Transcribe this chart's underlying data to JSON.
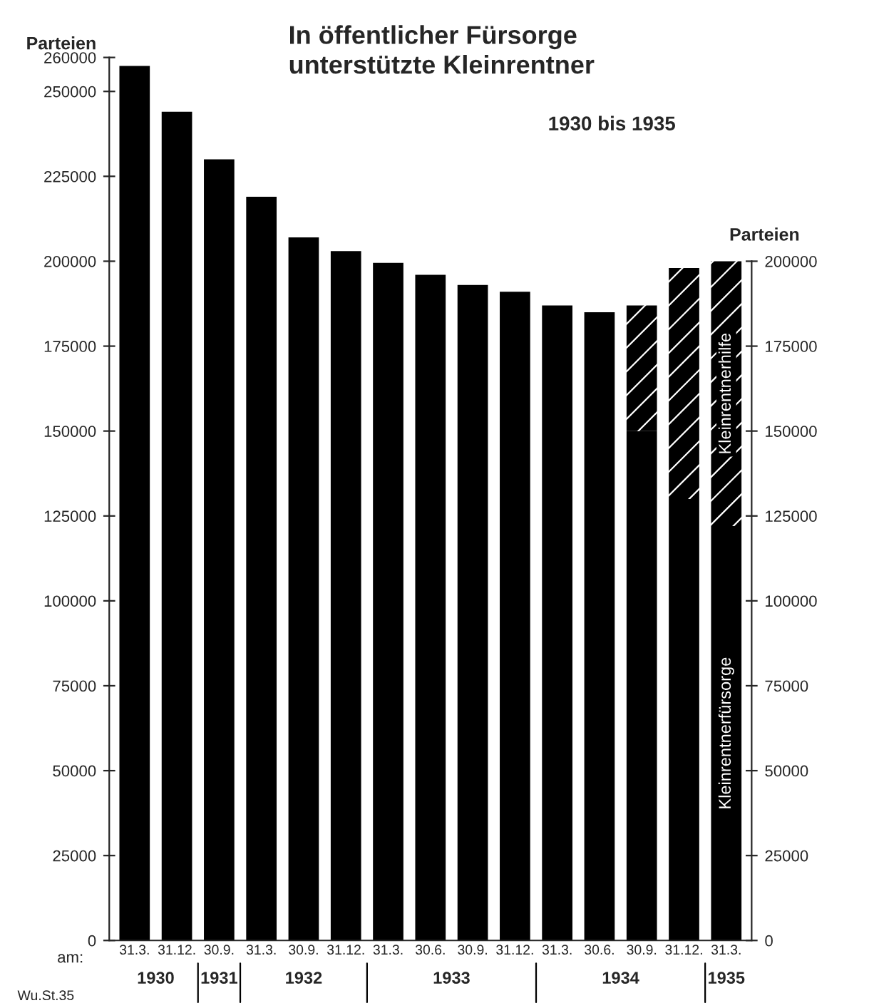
{
  "chart_data": {
    "type": "bar",
    "title": "In öffentlicher Fürsorge\nunterstützte Kleinrentner",
    "subtitle": "1930 bis 1935",
    "ylabel": "Parteien",
    "y2label": "Parteien",
    "categories": [
      "31.3.",
      "31.12.",
      "30.9.",
      "31.3.",
      "30.9.",
      "31.12.",
      "31.3.",
      "30.6.",
      "30.9.",
      "31.12.",
      "31.3.",
      "30.6.",
      "30.9.",
      "31.12.",
      "31.3."
    ],
    "stacked": true,
    "series": [
      {
        "name": "Kleinrentnerfürsorge",
        "color": "#000000",
        "values": [
          257500,
          244000,
          230000,
          219000,
          207000,
          203000,
          199500,
          196000,
          193000,
          191000,
          187000,
          185000,
          150000,
          130000,
          122000
        ]
      },
      {
        "name": "Kleinrentnerhilfe",
        "color": "#000000",
        "values": [
          null,
          null,
          null,
          null,
          null,
          null,
          null,
          null,
          null,
          null,
          null,
          null,
          37000,
          68000,
          78000
        ]
      }
    ],
    "ylim": [
      0,
      260000
    ],
    "yticks": [
      0,
      25000,
      50000,
      75000,
      100000,
      125000,
      150000,
      175000,
      200000,
      225000,
      250000,
      260000
    ],
    "y2lim": [
      0,
      260000
    ],
    "y2ticks": [
      0,
      25000,
      50000,
      75000,
      100000,
      125000,
      150000,
      175000,
      200000
    ],
    "annotations": [
      "am:",
      "1930",
      "1931",
      "1932",
      "1933",
      "1934",
      "1935",
      "Wu.St.35"
    ],
    "grid": false,
    "legend": false
  }
}
